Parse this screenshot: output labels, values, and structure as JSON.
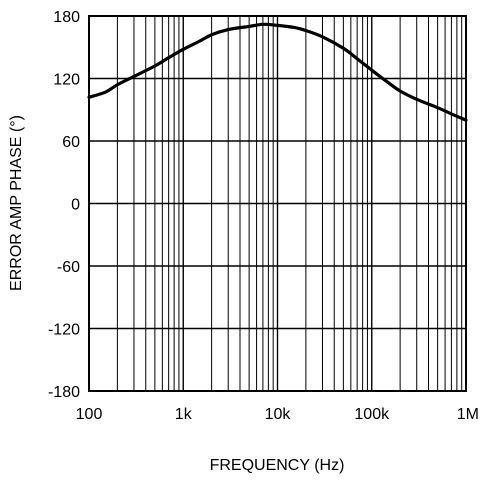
{
  "chart_data": {
    "type": "line",
    "title": "",
    "xlabel": "FREQUENCY (Hz)",
    "ylabel": "ERROR AMP PHASE (°)",
    "xscale": "log",
    "xlim": [
      100,
      1000000
    ],
    "ylim": [
      -180,
      180
    ],
    "x_tick_values": [
      100,
      1000,
      10000,
      100000,
      1000000
    ],
    "x_tick_labels": [
      "100",
      "1k",
      "10k",
      "100k",
      "1M"
    ],
    "y_tick_values": [
      180,
      120,
      60,
      0,
      -60,
      -120,
      -180
    ],
    "y_tick_labels": [
      "180",
      "120",
      "60",
      "0",
      "-60",
      "-120",
      "-180"
    ],
    "grid": true,
    "legend": "none",
    "series": [
      {
        "x": [
          100,
          150,
          200,
          300,
          500,
          700,
          1000,
          1500,
          2000,
          3000,
          5000,
          7000,
          10000,
          15000,
          20000,
          30000,
          50000,
          70000,
          100000,
          150000,
          200000,
          300000,
          500000,
          700000,
          1000000
        ],
        "y": [
          102,
          107,
          114,
          122,
          132,
          140,
          148,
          156,
          162,
          167,
          170,
          172,
          171,
          169,
          166,
          160,
          149,
          139,
          128,
          116,
          108,
          100,
          92,
          86,
          80
        ],
        "color": "#000000"
      }
    ]
  },
  "colors": {
    "line": "#000000",
    "grid": "#000000",
    "background": "#ffffff"
  }
}
